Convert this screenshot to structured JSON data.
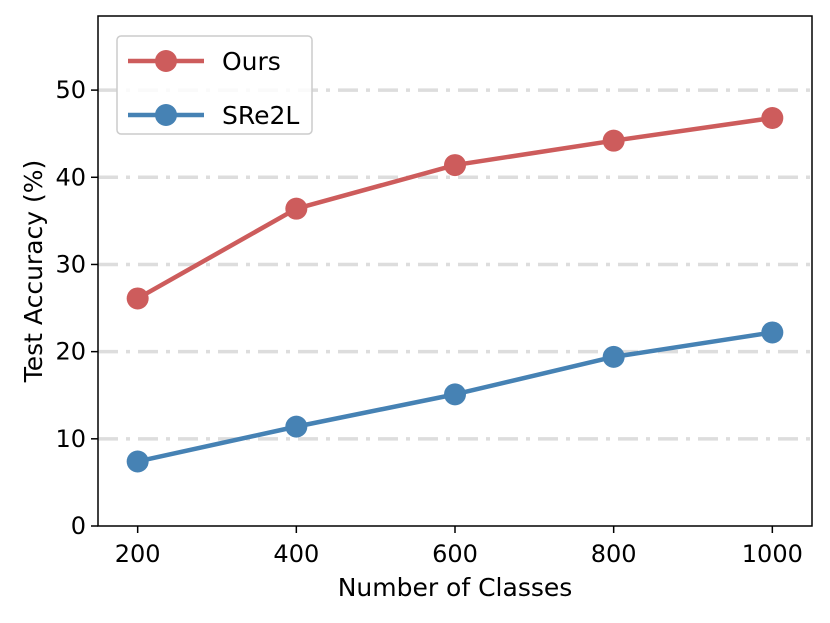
{
  "chart_data": {
    "type": "line",
    "title": "",
    "xlabel": "Number of Classes",
    "ylabel": "Test Accuracy (%)",
    "x": [
      200,
      400,
      600,
      800,
      1000
    ],
    "xticks": [
      "200",
      "400",
      "600",
      "800",
      "1000"
    ],
    "yticks": [
      "0",
      "10",
      "20",
      "30",
      "40",
      "50"
    ],
    "xlim": [
      150,
      1050
    ],
    "ylim": [
      0,
      58.5
    ],
    "grid": "horizontal, dash-dot",
    "legend_position": "top-left",
    "series": [
      {
        "name": "Ours",
        "color": "#cd5c5c",
        "values": [
          26.1,
          36.4,
          41.4,
          44.2,
          46.8
        ]
      },
      {
        "name": "SRe2L",
        "color": "#4682b4",
        "values": [
          7.4,
          11.4,
          15.1,
          19.4,
          22.2
        ]
      }
    ]
  }
}
